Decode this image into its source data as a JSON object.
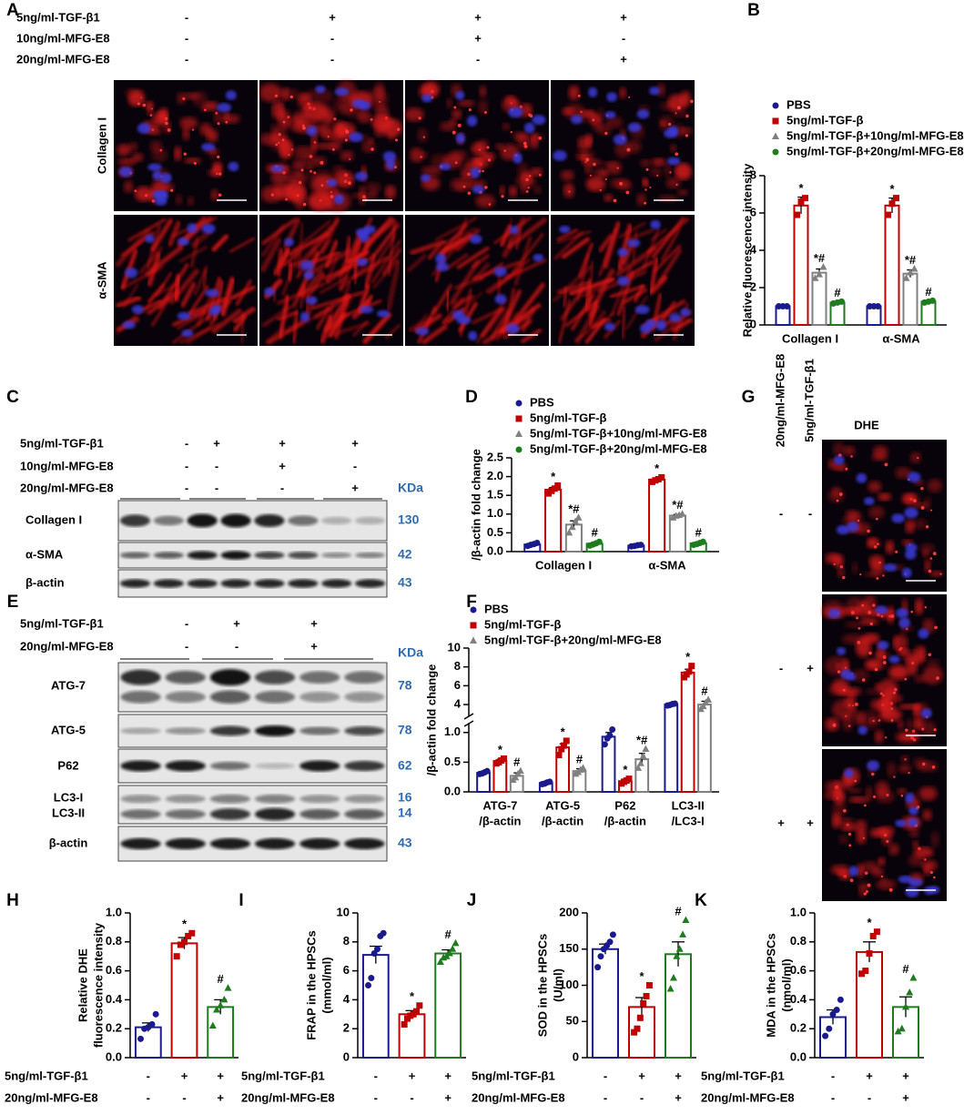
{
  "panel_labels": [
    "A",
    "B",
    "C",
    "D",
    "E",
    "F",
    "G",
    "H",
    "I",
    "J",
    "K"
  ],
  "panel_a": {
    "treatments": [
      {
        "label": "5ng/ml-TGF-β1",
        "signs": [
          "-",
          "+",
          "+",
          "+"
        ]
      },
      {
        "label": "10ng/ml-MFG-E8",
        "signs": [
          "-",
          "-",
          "+",
          "-"
        ]
      },
      {
        "label": "20ng/ml-MFG-E8",
        "signs": [
          "-",
          "-",
          "-",
          "+"
        ]
      }
    ],
    "rows": [
      "Collagen I",
      "α-SMA"
    ]
  },
  "panel_c": {
    "treatments": [
      {
        "label": "5ng/ml-TGF-β1",
        "signs": [
          "-",
          "+",
          "+",
          "+"
        ]
      },
      {
        "label": "10ng/ml-MFG-E8",
        "signs": [
          "-",
          "-",
          "+",
          "-"
        ]
      },
      {
        "label": "20ng/ml-MFG-E8",
        "signs": [
          "-",
          "-",
          "-",
          "+"
        ]
      }
    ],
    "unit": "KDa",
    "bands": [
      {
        "label": "Collagen I",
        "kda": 130
      },
      {
        "label": "α-SMA",
        "kda": 42
      },
      {
        "label": "β-actin",
        "kda": 43
      }
    ]
  },
  "panel_e": {
    "treatments": [
      {
        "label": "5ng/ml-TGF-β1",
        "signs": [
          "-",
          "+",
          "+"
        ]
      },
      {
        "label": "20ng/ml-MFG-E8",
        "signs": [
          "-",
          "-",
          "+"
        ]
      }
    ],
    "unit": "KDa",
    "bands": [
      {
        "label": "ATG-7",
        "kda": 78
      },
      {
        "label": "ATG-5",
        "kda": 78
      },
      {
        "label": "P62",
        "kda": 62
      },
      {
        "label": "LC3-I",
        "kda": 16
      },
      {
        "label": "LC3-II",
        "kda": 14
      },
      {
        "label": "β-actin",
        "kda": 43
      }
    ]
  },
  "panel_g": {
    "title": "DHE",
    "treatments": [
      {
        "label": "20ng/ml-MFG-E8",
        "signs": [
          "-",
          "-",
          "+"
        ]
      },
      {
        "label": "5ng/ml-TGF-β1",
        "signs": [
          "-",
          "+",
          "+"
        ]
      }
    ]
  },
  "chart_data": [
    {
      "type": "bar",
      "ylabel": "Relative fluorescence intensity",
      "categories": [
        "Collagen I",
        "α-SMA"
      ],
      "ylim": [
        0,
        8
      ],
      "yticks": [
        0,
        2,
        4,
        6,
        8
      ],
      "series": [
        {
          "name": "PBS",
          "color": "#1a1a8c",
          "marker": "circle",
          "values": [
            1.0,
            1.0
          ],
          "errors": [
            0.02,
            0.02
          ],
          "points": [
            [
              1.0,
              1.0,
              1.0
            ],
            [
              1.0,
              1.0,
              1.0
            ]
          ]
        },
        {
          "name": "5ng/ml-TGF-β",
          "color": "#c00000",
          "marker": "square",
          "values": [
            6.4,
            6.4
          ],
          "errors": [
            0.45,
            0.4
          ],
          "points": [
            [
              5.9,
              6.6,
              6.8
            ],
            [
              5.9,
              6.5,
              6.8
            ]
          ],
          "annotations": [
            "*",
            "*"
          ]
        },
        {
          "name": "5ng/ml-TGF-β+10ng/ml-MFG-E8",
          "color": "#808080",
          "marker": "triangle",
          "values": [
            2.8,
            2.75
          ],
          "errors": [
            0.2,
            0.2
          ],
          "points": [
            [
              2.5,
              2.7,
              3.1
            ],
            [
              2.5,
              2.8,
              3.0
            ]
          ],
          "annotations": [
            "*#",
            "*#"
          ]
        },
        {
          "name": "5ng/ml-TGF-β+20ng/ml-MFG-E8",
          "color": "#1e7b1e",
          "marker": "circle",
          "values": [
            1.2,
            1.25
          ],
          "errors": [
            0.05,
            0.04
          ],
          "points": [
            [
              1.15,
              1.2,
              1.25
            ],
            [
              1.2,
              1.25,
              1.3
            ]
          ],
          "annotations": [
            "#",
            "#"
          ]
        }
      ]
    },
    {
      "type": "bar",
      "ylabel": "/β-actin fold change",
      "categories": [
        "Collagen I",
        "α-SMA"
      ],
      "ylim": [
        0,
        2.5
      ],
      "yticks": [
        {
          "value": 0,
          "label": "0.0"
        },
        0.5,
        {
          "value": 1,
          "label": "1.0"
        },
        1.5,
        {
          "value": 2,
          "label": "2.0"
        },
        2.5
      ],
      "series": [
        {
          "name": "PBS",
          "color": "#1a1a8c",
          "marker": "circle",
          "values": [
            0.19,
            0.16
          ],
          "errors": [
            0.02,
            0.01
          ],
          "points": [
            [
              0.15,
              0.18,
              0.2,
              0.23
            ],
            [
              0.14,
              0.15,
              0.17,
              0.18
            ]
          ]
        },
        {
          "name": "5ng/ml-TGF-β",
          "color": "#c00000",
          "marker": "square",
          "values": [
            1.65,
            1.92
          ],
          "errors": [
            0.06,
            0.03
          ],
          "points": [
            [
              1.55,
              1.62,
              1.68,
              1.76
            ],
            [
              1.86,
              1.9,
              1.93,
              1.98
            ]
          ],
          "annotations": [
            "*",
            "*"
          ]
        },
        {
          "name": "5ng/ml-TGF-β+10ng/ml-MFG-E8",
          "color": "#808080",
          "marker": "triangle",
          "values": [
            0.72,
            0.96
          ],
          "errors": [
            0.1,
            0.03
          ],
          "points": [
            [
              0.5,
              0.65,
              0.8,
              0.9
            ],
            [
              0.9,
              0.95,
              0.97,
              1.0
            ]
          ],
          "annotations": [
            "*#",
            "*#"
          ]
        },
        {
          "name": "5ng/ml-TGF-β+20ng/ml-MFG-E8",
          "color": "#1e7b1e",
          "marker": "circle",
          "values": [
            0.21,
            0.22
          ],
          "errors": [
            0.03,
            0.02
          ],
          "points": [
            [
              0.16,
              0.19,
              0.22,
              0.26
            ],
            [
              0.18,
              0.2,
              0.23,
              0.26
            ]
          ],
          "annotations": [
            "#",
            "#"
          ]
        }
      ]
    },
    {
      "type": "bar",
      "ylabel": "/β-actin fold change",
      "categories": [
        [
          "ATG-7",
          "/β-actin"
        ],
        [
          "ATG-5",
          "/β-actin"
        ],
        [
          "P62",
          "/β-actin"
        ],
        [
          "LC3-II",
          "/LC3-I"
        ]
      ],
      "ylim": [
        0,
        10
      ],
      "ybreak": [
        1.15,
        2.75
      ],
      "yticks": [
        {
          "value": 0,
          "label": "0.0"
        },
        0.5,
        {
          "value": 1,
          "label": "1.0"
        },
        4,
        6,
        8,
        10
      ],
      "series": [
        {
          "name": "PBS",
          "color": "#1a1a8c",
          "marker": "circle",
          "values": [
            0.32,
            0.15,
            0.93,
            4.0
          ],
          "errors": [
            0.02,
            0.01,
            0.07,
            0.1
          ],
          "points": [
            [
              0.3,
              0.31,
              0.33,
              0.35
            ],
            [
              0.13,
              0.14,
              0.16,
              0.17
            ],
            [
              0.8,
              0.9,
              0.95,
              1.05
            ],
            [
              3.9,
              3.95,
              4.05,
              4.1
            ]
          ]
        },
        {
          "name": "5ng/ml-TGF-β",
          "color": "#c00000",
          "marker": "square",
          "values": [
            0.52,
            0.75,
            0.18,
            7.4
          ],
          "errors": [
            0.03,
            0.06,
            0.02,
            0.35
          ],
          "points": [
            [
              0.48,
              0.5,
              0.53,
              0.56
            ],
            [
              0.62,
              0.72,
              0.78,
              0.86
            ],
            [
              0.14,
              0.17,
              0.19,
              0.22
            ],
            [
              6.9,
              7.2,
              7.5,
              8.1
            ]
          ],
          "annotations": [
            "*",
            "*",
            "*",
            "*"
          ]
        },
        {
          "name": "5ng/ml-TGF-β+20ng/ml-MFG-E8",
          "color": "#808080",
          "marker": "triangle",
          "values": [
            0.27,
            0.35,
            0.55,
            4.0
          ],
          "errors": [
            0.05,
            0.04,
            0.1,
            0.35
          ],
          "points": [
            [
              0.2,
              0.24,
              0.3,
              0.35
            ],
            [
              0.3,
              0.33,
              0.37,
              0.4
            ],
            [
              0.4,
              0.48,
              0.6,
              0.72
            ],
            [
              3.5,
              3.8,
              4.2,
              4.5
            ]
          ],
          "annotations": [
            "#",
            "#",
            "*#",
            "#"
          ]
        }
      ]
    },
    {
      "type": "bar",
      "ylabel": [
        "Relative DHE",
        "fluorescence intensity"
      ],
      "ylim": [
        0,
        1
      ],
      "yticks": [
        {
          "value": 0,
          "label": "0.0"
        },
        0.2,
        0.4,
        0.6,
        0.8,
        {
          "value": 1,
          "label": "1.0"
        }
      ],
      "values": [
        0.21,
        0.79,
        0.35
      ],
      "errors": [
        0.03,
        0.04,
        0.05
      ],
      "colors": [
        "#1a1a8c",
        "#c00000",
        "#1e7b1e"
      ],
      "markers": [
        "circle",
        "square",
        "triangle"
      ],
      "points": [
        [
          0.13,
          0.2,
          0.21,
          0.23,
          0.3
        ],
        [
          0.7,
          0.78,
          0.8,
          0.84,
          0.86
        ],
        [
          0.22,
          0.33,
          0.36,
          0.4,
          0.48
        ]
      ],
      "annotations": [
        {
          "index": 1,
          "text": "*"
        },
        {
          "index": 2,
          "text": "#"
        }
      ],
      "treatments": [
        {
          "label": "5ng/ml-TGF-β1",
          "signs": [
            "-",
            "+",
            "+"
          ]
        },
        {
          "label": "20ng/ml-MFG-E8",
          "signs": [
            "-",
            "-",
            "+"
          ]
        }
      ]
    },
    {
      "type": "bar",
      "ylabel": [
        "FRAP in the HPSCs",
        "(mmol/ml)"
      ],
      "ylim": [
        0,
        10
      ],
      "yticks": [
        0,
        2,
        4,
        6,
        8,
        10
      ],
      "values": [
        7.1,
        3.0,
        7.2
      ],
      "errors": [
        0.6,
        0.25,
        0.25
      ],
      "colors": [
        "#1a1a8c",
        "#c00000",
        "#1e7b1e"
      ],
      "markers": [
        "circle",
        "square",
        "triangle"
      ],
      "points": [
        [
          5.0,
          5.5,
          7.2,
          7.5,
          8.4,
          8.6
        ],
        [
          2.3,
          2.7,
          2.9,
          3.0,
          3.2,
          3.6
        ],
        [
          6.6,
          6.9,
          7.0,
          7.2,
          7.5,
          7.9
        ]
      ],
      "annotations": [
        {
          "index": 1,
          "text": "*"
        },
        {
          "index": 2,
          "text": "#"
        }
      ],
      "treatments": [
        {
          "label": "5ng/ml-TGF-β1",
          "signs": [
            "-",
            "+",
            "+"
          ]
        },
        {
          "label": "20ng/ml-MFG-E8",
          "signs": [
            "-",
            "-",
            "+"
          ]
        }
      ]
    },
    {
      "type": "bar",
      "ylabel": [
        "SOD in the HPSCs",
        "(U/ml)"
      ],
      "ylim": [
        0,
        200
      ],
      "yticks": [
        0,
        50,
        100,
        150,
        200
      ],
      "values": [
        150,
        70,
        143
      ],
      "errors": [
        7,
        13,
        17
      ],
      "colors": [
        "#1a1a8c",
        "#c00000",
        "#1e7b1e"
      ],
      "markers": [
        "circle",
        "square",
        "triangle"
      ],
      "points": [
        [
          125,
          140,
          150,
          155,
          160,
          170
        ],
        [
          35,
          40,
          55,
          75,
          85,
          100
        ],
        [
          95,
          110,
          140,
          150,
          170,
          190
        ]
      ],
      "annotations": [
        {
          "index": 1,
          "text": "*"
        },
        {
          "index": 2,
          "text": "#"
        }
      ],
      "treatments": [
        {
          "label": "5ng/ml-TGF-β1",
          "signs": [
            "-",
            "+",
            "+"
          ]
        },
        {
          "label": "20ng/ml-MFG-E8",
          "signs": [
            "-",
            "-",
            "+"
          ]
        }
      ]
    },
    {
      "type": "bar",
      "ylabel": [
        "MDA in the HPSCs",
        "(nmol/ml)"
      ],
      "ylim": [
        0,
        1
      ],
      "yticks": [
        {
          "value": 0,
          "label": "0.0"
        },
        0.2,
        0.4,
        0.6,
        0.8,
        {
          "value": 1,
          "label": "1.0"
        }
      ],
      "values": [
        0.28,
        0.73,
        0.35
      ],
      "errors": [
        0.05,
        0.07,
        0.07
      ],
      "colors": [
        "#1a1a8c",
        "#c00000",
        "#1e7b1e"
      ],
      "markers": [
        "circle",
        "square",
        "triangle"
      ],
      "points": [
        [
          0.15,
          0.2,
          0.3,
          0.33,
          0.4
        ],
        [
          0.58,
          0.6,
          0.72,
          0.84,
          0.87
        ],
        [
          0.18,
          0.2,
          0.35,
          0.45,
          0.55
        ]
      ],
      "annotations": [
        {
          "index": 1,
          "text": "*"
        },
        {
          "index": 2,
          "text": "#"
        }
      ],
      "treatments": [
        {
          "label": "5ng/ml-TGF-β1",
          "signs": [
            "-",
            "+",
            "+"
          ]
        },
        {
          "label": "20ng/ml-MFG-E8",
          "signs": [
            "-",
            "-",
            "+"
          ]
        }
      ]
    }
  ]
}
